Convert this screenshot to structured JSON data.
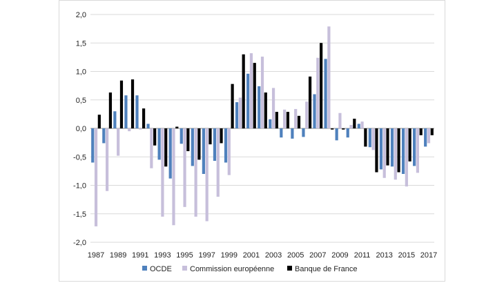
{
  "chart_data": {
    "type": "bar",
    "title": "",
    "xlabel": "",
    "ylabel": "",
    "ylim": [
      -2.0,
      2.0
    ],
    "yticks": [
      "2,0",
      "1,5",
      "1,0",
      "0,5",
      "0,0",
      "-0,5",
      "-1,0",
      "-1,5",
      "-2,0"
    ],
    "ytick_values": [
      2.0,
      1.5,
      1.0,
      0.5,
      0.0,
      -0.5,
      -1.0,
      -1.5,
      -2.0
    ],
    "grid": "horizontal",
    "legend_position": "bottom",
    "categories": [
      "1987",
      "1988",
      "1989",
      "1990",
      "1991",
      "1992",
      "1993",
      "1994",
      "1995",
      "1996",
      "1997",
      "1998",
      "1999",
      "2000",
      "2001",
      "2002",
      "2003",
      "2004",
      "2005",
      "2006",
      "2007",
      "2008",
      "2009",
      "2010",
      "2011",
      "2012",
      "2013",
      "2014",
      "2015",
      "2016",
      "2017"
    ],
    "xtick_labels": [
      "1987",
      "1989",
      "1991",
      "1993",
      "1995",
      "1997",
      "1999",
      "2001",
      "2003",
      "2005",
      "2007",
      "2009",
      "2011",
      "2013",
      "2015",
      "2017"
    ],
    "series": [
      {
        "name": "OCDE",
        "color": "#4f81bd",
        "values": [
          -0.6,
          -0.26,
          0.3,
          0.58,
          0.58,
          0.08,
          -0.55,
          -0.88,
          -0.27,
          -0.66,
          -0.8,
          -0.57,
          -0.6,
          0.46,
          0.96,
          0.74,
          0.16,
          -0.16,
          -0.18,
          -0.15,
          0.6,
          1.22,
          -0.21,
          -0.16,
          0.08,
          -0.33,
          -0.72,
          -0.67,
          -0.8,
          -0.66,
          -0.32
        ]
      },
      {
        "name": "Commission européenne",
        "color": "#c7bfdb",
        "values": [
          -1.72,
          -1.1,
          -0.48,
          -0.05,
          -0.02,
          -0.7,
          -1.55,
          -1.7,
          -1.38,
          -1.55,
          -1.63,
          -1.2,
          -0.82,
          0.54,
          1.32,
          1.26,
          0.71,
          0.33,
          0.34,
          0.47,
          1.24,
          1.79,
          0.27,
          0.06,
          0.12,
          -0.38,
          -0.87,
          -0.9,
          -1.02,
          -0.78,
          -0.26
        ]
      },
      {
        "name": "Banque de France",
        "color": "#000000",
        "values": [
          0.24,
          0.63,
          0.84,
          0.86,
          0.35,
          -0.3,
          -0.67,
          0.03,
          -0.4,
          -0.55,
          -0.28,
          -0.26,
          0.78,
          1.3,
          1.15,
          0.63,
          0.29,
          0.29,
          0.22,
          0.91,
          1.5,
          -0.02,
          -0.02,
          0.17,
          -0.32,
          -0.77,
          -0.65,
          -0.77,
          -0.58,
          -0.12,
          -0.12
        ]
      }
    ]
  }
}
